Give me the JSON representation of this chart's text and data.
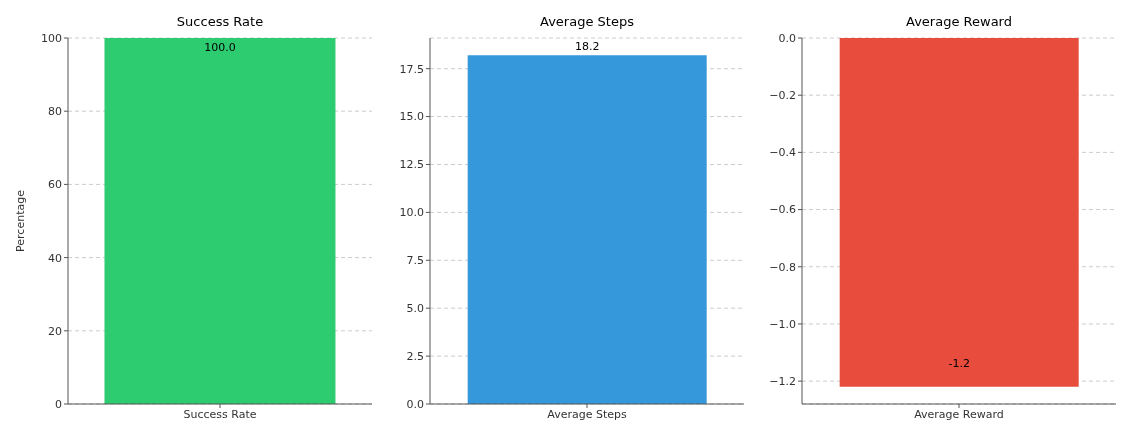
{
  "chart_data": [
    {
      "type": "bar",
      "title": "Success Rate",
      "ylabel": "Percentage",
      "categories": [
        "Success Rate"
      ],
      "values": [
        100
      ],
      "color": "#2ecc71",
      "value_labels": [
        "100.0"
      ],
      "ylim": [
        0,
        100
      ],
      "yticks": [
        0,
        20,
        40,
        60,
        80,
        100
      ],
      "grid": "y"
    },
    {
      "type": "bar",
      "title": "Average Steps",
      "categories": [
        "Average Steps"
      ],
      "values": [
        18.2
      ],
      "color": "#3498db",
      "data_labels": true,
      "ylim": [
        0,
        19.1
      ],
      "yticks": [
        {
          "value": 0,
          "label": "0.0"
        },
        2.5,
        {
          "value": 5,
          "label": "5.0"
        },
        7.5,
        {
          "value": 10,
          "label": "10.0"
        },
        12.5,
        {
          "value": 15,
          "label": "15.0"
        },
        17.5
      ],
      "grid": "y"
    },
    {
      "type": "bar",
      "title": "Average Reward",
      "categories": [
        "Average Reward"
      ],
      "values": [
        -1.22
      ],
      "color": "#e74c3c",
      "value_labels": [
        "-1.2"
      ],
      "ylim": [
        -1.28,
        0
      ],
      "yticks": [
        {
          "value": -1.2,
          "label": "−1.2"
        },
        {
          "value": -1.0,
          "label": "−1.0"
        },
        {
          "value": -0.8,
          "label": "−0.8"
        },
        {
          "value": -0.6,
          "label": "−0.6"
        },
        {
          "value": -0.4,
          "label": "−0.4"
        },
        {
          "value": -0.2,
          "label": "−0.2"
        },
        {
          "value": 0,
          "label": "0.0"
        }
      ],
      "grid": "y"
    }
  ]
}
